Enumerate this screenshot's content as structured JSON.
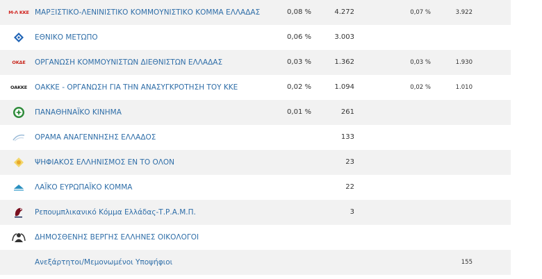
{
  "rows": [
    {
      "name": "ΜΑΡΞΙΣΤΙΚΟ-ΛΕΝΙΝΙΣΤΙΚΟ ΚΟΜΜΟΥΝΙΣΤΙΚΟ ΚΟΜΜΑ ΕΛΛΑΔΑΣ",
      "pct": "0,08 %",
      "votes": "4.272",
      "pct2": "0,07 %",
      "votes2": "3.922",
      "logo_text": "Μ-Λ ΚΚΕ",
      "logo_icon": "ml-kke-logo",
      "logo_color": "#d0211c"
    },
    {
      "name": "ΕΘΝΙΚΟ ΜΕΤΩΠΟ",
      "pct": "0,06 %",
      "votes": "3.003",
      "logo_icon": "ethniko-metopo-logo",
      "logo_color": "#1e63b5"
    },
    {
      "name": "ΟΡΓΑΝΩΣΗ ΚΟΜΜΟΥΝΙΣΤΩΝ ΔΙΕΘΝΙΣΤΩΝ ΕΛΛΑΔΑΣ",
      "pct": "0,03 %",
      "votes": "1.362",
      "pct2": "0,03 %",
      "votes2": "1.930",
      "logo_text": "ΟΚΔΕ",
      "logo_icon": "okde-logo",
      "logo_color": "#c8281e"
    },
    {
      "name": "ΟΑΚΚΕ - ΟΡΓΑΝΩΣΗ ΓΙΑ ΤΗΝ ΑΝΑΣΥΓΚΡΟΤΗΣΗ ΤΟΥ ΚΚΕ",
      "pct": "0,02 %",
      "votes": "1.094",
      "pct2": "0,02 %",
      "votes2": "1.010",
      "logo_text": "ΟΑΚΚΕ",
      "logo_icon": "oakke-logo",
      "logo_color": "#222222"
    },
    {
      "name": "ΠΑΝΑΘΗΝΑΪΚΟ ΚΙΝΗΜΑ",
      "pct": "0,01 %",
      "votes": "261",
      "logo_icon": "panathinaiko-logo",
      "logo_color": "#2e8b3a"
    },
    {
      "name": "ΟΡΑΜΑ ΑΝΑΓΕΝΝΗΣΗΣ ΕΛΛΑΔΟΣ",
      "votes": "133",
      "logo_icon": "orama-logo",
      "logo_color": "#9bbbd8"
    },
    {
      "name": "ΨΗΦΙΑΚΟΣ ΕΛΛΗΝΙΣΜΟΣ ΕΝ ΤΟ ΟΛΟΝ",
      "votes": "23",
      "logo_icon": "psifiakos-logo",
      "logo_color": "#e8c23a"
    },
    {
      "name": "ΛΑΪΚΟ ΕΥΡΩΠΑΪΚΟ ΚΟΜΜΑ",
      "votes": "22",
      "logo_icon": "laiko-europaiko-logo",
      "logo_color": "#2a8fbf"
    },
    {
      "name": "Ρεπουμπλικανικό Κόμμα Ελλάδας-Τ.Ρ.Α.Μ.Π.",
      "votes": "3",
      "logo_icon": "trump-party-logo",
      "logo_color": "#7a1020"
    },
    {
      "name": "ΔΗΜΟΣΘΕΝΗΣ ΒΕΡΓΗΣ ΕΛΛΗΝΕΣ ΟΙΚΟΛΟΓΟΙ",
      "logo_icon": "ellines-oikologoi-logo",
      "logo_color": "#333333"
    },
    {
      "name": "Ανεξάρτητοι/Μεμονωμένοι Υποψήφιοι",
      "votes2": "155"
    }
  ]
}
